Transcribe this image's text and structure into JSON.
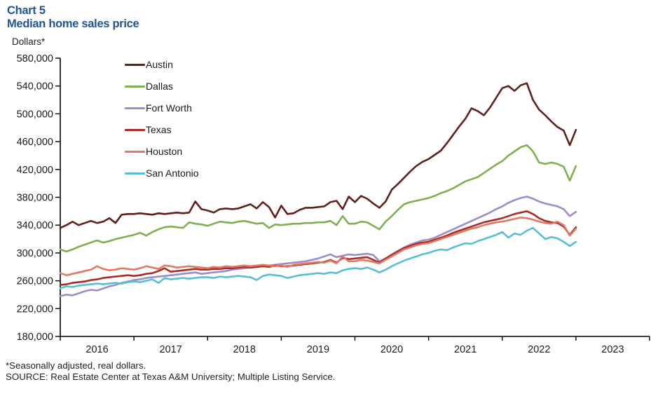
{
  "header": {
    "chart_label": "Chart 5",
    "title": "Median home sales price",
    "accent_color": "#1f5496"
  },
  "y_axis": {
    "unit_label": "Dollars*",
    "min": 180000,
    "max": 580000,
    "tick_step": 40000,
    "tick_labels": [
      "580,000",
      "540,000",
      "500,000",
      "460,000",
      "420,000",
      "380,000",
      "340,000",
      "300,000",
      "260,000",
      "220,000",
      "180,000"
    ]
  },
  "x_axis": {
    "year_labels": [
      "2016",
      "2017",
      "2018",
      "2019",
      "2020",
      "2021",
      "2022",
      "2023"
    ]
  },
  "footnotes": {
    "line1": "*Seasonally adjusted, real dollars.",
    "line2": "SOURCE: Real Estate Center at Texas A&M University; Multiple Listing Service."
  },
  "chart_data": {
    "type": "line",
    "title": "Median home sales price",
    "ylabel": "Dollars (seasonally adjusted, real)",
    "frequency": "monthly",
    "x_start": "2016-01",
    "x_end": "2023-01",
    "points_per_series": 85,
    "ylim": [
      180000,
      580000
    ],
    "grid": false,
    "legend_position": "upper-left-inside",
    "series": [
      {
        "name": "Austin",
        "color": "#5e211d",
        "values": [
          336000,
          340000,
          345000,
          340000,
          343000,
          346000,
          343000,
          345000,
          350000,
          343000,
          355000,
          356000,
          356000,
          357000,
          356000,
          355000,
          357000,
          356000,
          357000,
          358000,
          357000,
          358000,
          374000,
          363000,
          361000,
          358000,
          363000,
          364000,
          363000,
          364000,
          367000,
          370000,
          364000,
          373000,
          366000,
          351000,
          368000,
          356000,
          357000,
          362000,
          365000,
          365000,
          366000,
          367000,
          373000,
          375000,
          363000,
          381000,
          373000,
          382000,
          378000,
          371000,
          365000,
          374000,
          391000,
          399000,
          408000,
          417000,
          425000,
          431000,
          435000,
          441000,
          447000,
          458000,
          470000,
          482000,
          493000,
          508000,
          504000,
          498000,
          509000,
          523000,
          537000,
          540000,
          533000,
          541000,
          544000,
          520000,
          506000,
          498000,
          489000,
          481000,
          476000,
          455000,
          477000
        ]
      },
      {
        "name": "Dallas",
        "color": "#7db04e",
        "values": [
          305000,
          302000,
          305000,
          309000,
          312000,
          315000,
          318000,
          315000,
          317000,
          320000,
          322000,
          324000,
          326000,
          329000,
          325000,
          330000,
          334000,
          337000,
          338000,
          337000,
          336000,
          344000,
          342000,
          341000,
          339000,
          342000,
          345000,
          344000,
          343000,
          345000,
          346000,
          344000,
          342000,
          343000,
          336000,
          341000,
          340000,
          341000,
          342000,
          342000,
          343000,
          343000,
          344000,
          344000,
          346000,
          340000,
          353000,
          342000,
          342000,
          345000,
          344000,
          339000,
          334000,
          345000,
          353000,
          362000,
          370000,
          373000,
          375000,
          377000,
          379000,
          382000,
          386000,
          389000,
          393000,
          398000,
          403000,
          406000,
          409000,
          415000,
          421000,
          427000,
          432000,
          440000,
          446000,
          452000,
          455000,
          446000,
          430000,
          428000,
          430000,
          428000,
          424000,
          404000,
          425000
        ]
      },
      {
        "name": "Fort Worth",
        "color": "#9e8cc6",
        "values": [
          238000,
          240000,
          239000,
          242000,
          245000,
          247000,
          246000,
          249000,
          252000,
          254000,
          257000,
          259000,
          261000,
          262000,
          264000,
          265000,
          266000,
          267000,
          268000,
          269000,
          270000,
          271000,
          272000,
          270000,
          271000,
          272000,
          273000,
          274000,
          276000,
          277000,
          278000,
          279000,
          280000,
          281000,
          282000,
          283000,
          284000,
          285000,
          286000,
          287000,
          288000,
          290000,
          292000,
          295000,
          298000,
          294000,
          296000,
          298000,
          297000,
          298000,
          299000,
          297000,
          288000,
          292000,
          298000,
          303000,
          308000,
          312000,
          315000,
          318000,
          319000,
          322000,
          326000,
          330000,
          334000,
          338000,
          342000,
          346000,
          350000,
          354000,
          358000,
          363000,
          367000,
          372000,
          376000,
          379000,
          381000,
          378000,
          374000,
          371000,
          369000,
          367000,
          363000,
          353000,
          359000
        ]
      },
      {
        "name": "Texas",
        "color": "#aa2b25",
        "values": [
          254000,
          255000,
          257000,
          258000,
          259000,
          261000,
          262000,
          264000,
          265000,
          266000,
          267000,
          268000,
          267000,
          268000,
          270000,
          271000,
          274000,
          278000,
          273000,
          274000,
          275000,
          276000,
          277000,
          276000,
          276000,
          277000,
          277000,
          278000,
          278000,
          279000,
          280000,
          279000,
          280000,
          281000,
          280000,
          282000,
          281000,
          281000,
          282000,
          283000,
          284000,
          285000,
          286000,
          287000,
          290000,
          286000,
          293000,
          291000,
          292000,
          293000,
          294000,
          290000,
          286000,
          292000,
          297000,
          302000,
          307000,
          310000,
          313000,
          315000,
          316000,
          319000,
          322000,
          325000,
          329000,
          332000,
          335000,
          338000,
          341000,
          344000,
          346000,
          348000,
          350000,
          353000,
          356000,
          358000,
          360000,
          356000,
          350000,
          346000,
          344000,
          343000,
          338000,
          326000,
          337000
        ]
      },
      {
        "name": "Houston",
        "color": "#e07a64",
        "values": [
          271000,
          268000,
          270000,
          272000,
          274000,
          276000,
          281000,
          277000,
          275000,
          276000,
          278000,
          277000,
          276000,
          278000,
          281000,
          279000,
          277000,
          282000,
          281000,
          279000,
          280000,
          281000,
          280000,
          279000,
          278000,
          280000,
          279000,
          281000,
          280000,
          281000,
          282000,
          281000,
          282000,
          283000,
          282000,
          281000,
          282000,
          280000,
          283000,
          284000,
          285000,
          286000,
          287000,
          286000,
          289000,
          285000,
          295000,
          288000,
          288000,
          290000,
          289000,
          287000,
          285000,
          290000,
          295000,
          300000,
          305000,
          308000,
          311000,
          313000,
          314000,
          317000,
          320000,
          323000,
          326000,
          329000,
          332000,
          335000,
          337000,
          340000,
          342000,
          344000,
          345000,
          347000,
          349000,
          351000,
          350000,
          348000,
          345000,
          343000,
          342000,
          345000,
          340000,
          325000,
          335000
        ]
      },
      {
        "name": "San Antonio",
        "color": "#56bed6",
        "values": [
          249000,
          252000,
          251000,
          253000,
          254000,
          255000,
          256000,
          255000,
          256000,
          257000,
          256000,
          258000,
          259000,
          258000,
          260000,
          262000,
          257000,
          264000,
          262000,
          263000,
          264000,
          263000,
          264000,
          265000,
          265000,
          264000,
          266000,
          265000,
          266000,
          267000,
          266000,
          265000,
          261000,
          267000,
          269000,
          268000,
          267000,
          264000,
          266000,
          268000,
          269000,
          270000,
          271000,
          270000,
          272000,
          271000,
          275000,
          277000,
          278000,
          277000,
          279000,
          276000,
          272000,
          276000,
          281000,
          285000,
          289000,
          292000,
          295000,
          298000,
          300000,
          303000,
          305000,
          304000,
          308000,
          311000,
          314000,
          313000,
          317000,
          320000,
          323000,
          326000,
          330000,
          322000,
          328000,
          326000,
          332000,
          336000,
          328000,
          320000,
          323000,
          321000,
          316000,
          310000,
          316000
        ]
      }
    ]
  }
}
